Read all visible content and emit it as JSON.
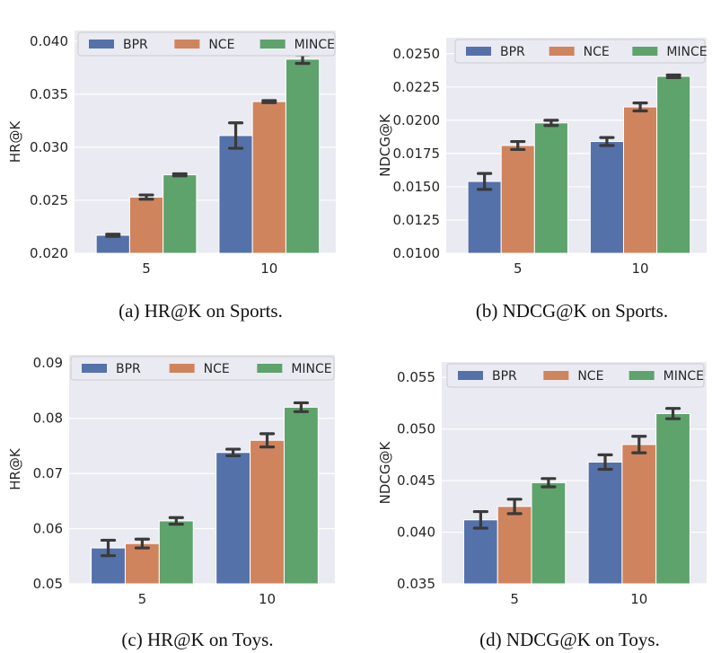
{
  "colors": {
    "BPR": "#5471a9",
    "NCE": "#cf845d",
    "MINCE": "#5ea26c",
    "plot_bg": "#eaeaf2",
    "grid": "#ffffff",
    "error_bar": "#3a3a3a"
  },
  "chart_data": [
    {
      "type": "bar",
      "caption": "(a)  HR@K on Sports.",
      "xlabel": "",
      "ylabel": "HR@K",
      "categories": [
        "5",
        "10"
      ],
      "ylim": [
        0.02,
        0.041
      ],
      "yticks": [
        "0.020",
        "0.025",
        "0.030",
        "0.035",
        "0.040"
      ],
      "series": [
        {
          "name": "BPR",
          "values": [
            0.0217,
            0.0311
          ],
          "err": [
            0.0001,
            0.0012
          ]
        },
        {
          "name": "NCE",
          "values": [
            0.0253,
            0.0343
          ],
          "err": [
            0.0002,
            0.0001
          ]
        },
        {
          "name": "MINCE",
          "values": [
            0.0274,
            0.0383
          ],
          "err": [
            0.0001,
            0.0004
          ]
        }
      ],
      "grid": true,
      "legend": "top"
    },
    {
      "type": "bar",
      "caption": "(b)  NDCG@K on Sports.",
      "xlabel": "",
      "ylabel": "NDCG@K",
      "categories": [
        "5",
        "10"
      ],
      "ylim": [
        0.01,
        0.0262
      ],
      "yticks": [
        "0.0100",
        "0.0125",
        "0.0150",
        "0.0175",
        "0.0200",
        "0.0225",
        "0.0250"
      ],
      "series": [
        {
          "name": "BPR",
          "values": [
            0.0154,
            0.0184
          ],
          "err": [
            0.0006,
            0.0003
          ]
        },
        {
          "name": "NCE",
          "values": [
            0.0181,
            0.021
          ],
          "err": [
            0.0003,
            0.0003
          ]
        },
        {
          "name": "MINCE",
          "values": [
            0.0198,
            0.0233
          ],
          "err": [
            0.0002,
            0.0001
          ]
        }
      ],
      "grid": true,
      "legend": "top"
    },
    {
      "type": "bar",
      "caption": "(c)  HR@K on Toys.",
      "xlabel": "",
      "ylabel": "HR@K",
      "categories": [
        "5",
        "10"
      ],
      "ylim": [
        0.05,
        0.0915
      ],
      "yticks": [
        "0.05",
        "0.06",
        "0.07",
        "0.08",
        "0.09"
      ],
      "series": [
        {
          "name": "BPR",
          "values": [
            0.0565,
            0.0738
          ],
          "err": [
            0.0014,
            0.0006
          ]
        },
        {
          "name": "NCE",
          "values": [
            0.0573,
            0.076
          ],
          "err": [
            0.0008,
            0.0012
          ]
        },
        {
          "name": "MINCE",
          "values": [
            0.0614,
            0.082
          ],
          "err": [
            0.0006,
            0.0008
          ]
        }
      ],
      "grid": true,
      "legend": "top"
    },
    {
      "type": "bar",
      "caption": "(d)  NDCG@K on Toys.",
      "xlabel": "",
      "ylabel": "NDCG@K",
      "categories": [
        "5",
        "10"
      ],
      "ylim": [
        0.035,
        0.0565
      ],
      "yticks": [
        "0.035",
        "0.040",
        "0.045",
        "0.050",
        "0.055"
      ],
      "series": [
        {
          "name": "BPR",
          "values": [
            0.0412,
            0.0468
          ],
          "err": [
            0.0008,
            0.0007
          ]
        },
        {
          "name": "NCE",
          "values": [
            0.0425,
            0.0485
          ],
          "err": [
            0.0007,
            0.0008
          ]
        },
        {
          "name": "MINCE",
          "values": [
            0.0448,
            0.0515
          ],
          "err": [
            0.0004,
            0.0005
          ]
        }
      ],
      "grid": true,
      "legend": "top"
    }
  ]
}
